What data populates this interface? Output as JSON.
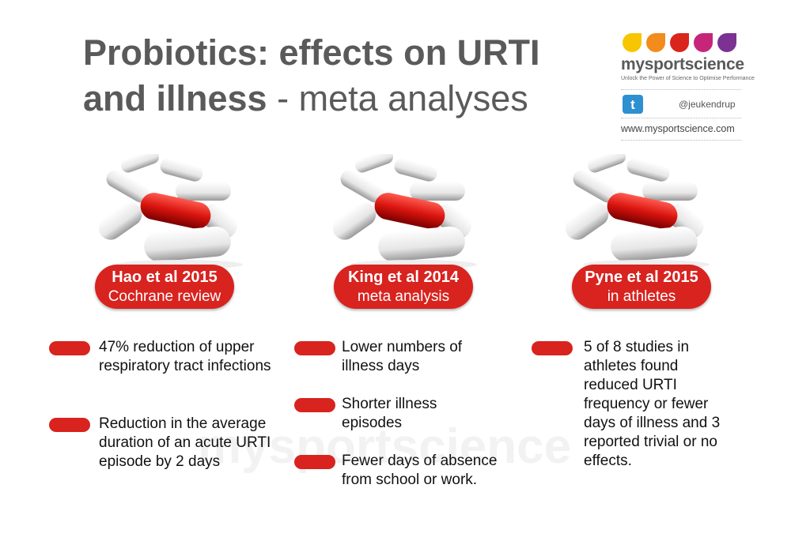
{
  "header": {
    "title_bold_line1": "Probiotics: effects on URTI",
    "title_bold_line2": "and illness",
    "title_light": "- meta analyses"
  },
  "logo": {
    "name": "mysportscience",
    "tagline": "Unlock the Power of Science to Optimise Performance",
    "twitter": "@jeukendrup",
    "website": "www.mysportscience.com"
  },
  "watermark": "mysportscience",
  "columns": [
    {
      "label_bold": "Hao et al 2015",
      "label_sub": "Cochrane review",
      "bullets": [
        "47% reduction of upper respiratory tract infections",
        "Reduction in the average duration of an acute URTI episode by 2 days"
      ]
    },
    {
      "label_bold": "King et al 2014",
      "label_sub": "meta analysis",
      "bullets": [
        "Lower numbers of illness days",
        "Shorter illness episodes",
        "Fewer days of absence from school or work."
      ]
    },
    {
      "label_bold": "Pyne et al 2015",
      "label_sub": "in athletes",
      "bullets": [
        "5 of 8 studies in athletes found reduced URTI frequency or fewer days of illness and 3 reported trivial or no effects."
      ]
    }
  ]
}
